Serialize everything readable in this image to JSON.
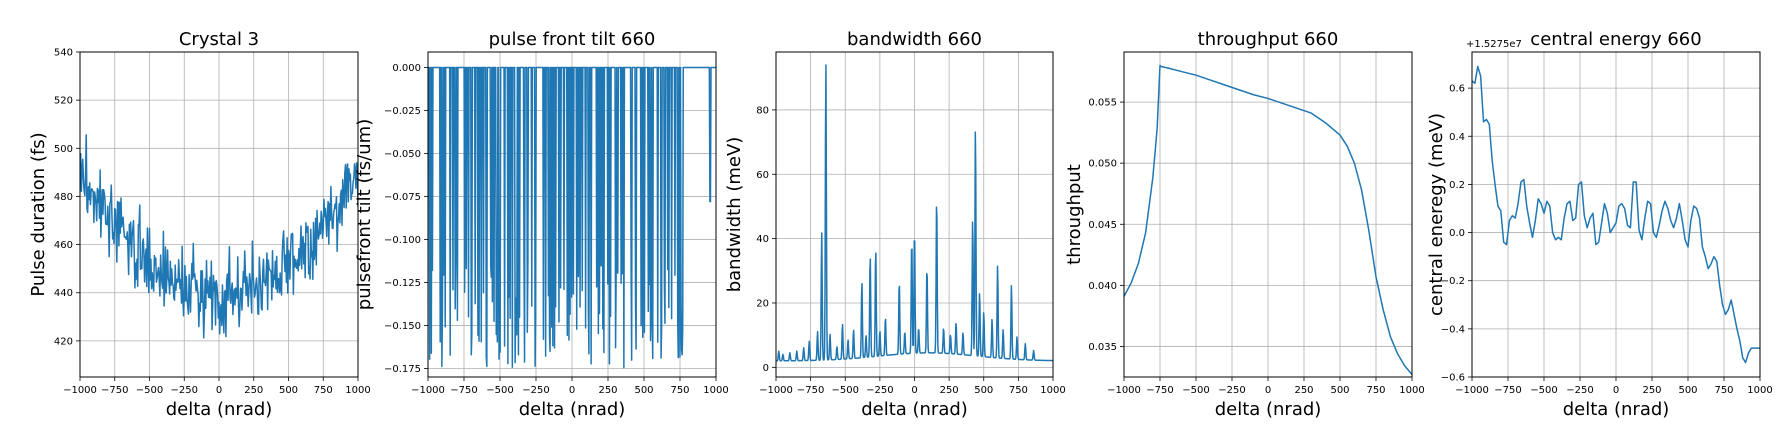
{
  "figure": {
    "line_color": "#1f77b4",
    "grid": true,
    "background": "#ffffff"
  },
  "chart_data": [
    {
      "type": "line",
      "title": "Crystal 3",
      "xlabel": "delta (nrad)",
      "ylabel": "Pulse duration (fs)",
      "xlim": [
        -1000,
        1000
      ],
      "ylim": [
        405,
        540
      ],
      "xticks": [
        -1000,
        -750,
        -500,
        -250,
        0,
        250,
        500,
        750,
        1000
      ],
      "yticks": [
        420,
        440,
        460,
        480,
        500,
        520,
        540
      ],
      "ytick_labels": [
        "420",
        "440",
        "460",
        "480",
        "500",
        "520",
        "540"
      ],
      "generated": {
        "kind": "noisy_parabola",
        "n": 401,
        "x0": 0,
        "a": 5e-05,
        "c": 440,
        "noise": 12,
        "seed": 3
      },
      "series": [
        {
          "x": [],
          "y": []
        }
      ]
    },
    {
      "type": "line",
      "title": "pulse front tilt 660",
      "xlabel": "delta (nrad)",
      "ylabel": "pulsefront tilt (fs/um)",
      "xlim": [
        -1000,
        1000
      ],
      "ylim": [
        -0.18,
        0.009
      ],
      "xticks": [
        -1000,
        -750,
        -500,
        -250,
        0,
        250,
        500,
        750,
        1000
      ],
      "yticks": [
        -0.175,
        -0.15,
        -0.125,
        -0.1,
        -0.075,
        -0.05,
        -0.025,
        0.0
      ],
      "ytick_labels": [
        "−0.175",
        "−0.150",
        "−0.125",
        "−0.100",
        "−0.075",
        "−0.050",
        "−0.025",
        "0.000"
      ],
      "generated": {
        "kind": "spikes_down",
        "baseline": 0,
        "n_spikes": 140,
        "min": -0.175,
        "seed": 7
      },
      "series": [
        {
          "x": [],
          "y": []
        }
      ]
    },
    {
      "type": "line",
      "title": "bandwidth 660",
      "xlabel": "delta (nrad)",
      "ylabel": "bandwidth (meV)",
      "xlim": [
        -1000,
        1000
      ],
      "ylim": [
        -3,
        98
      ],
      "xticks": [
        -1000,
        -750,
        -500,
        -250,
        0,
        250,
        500,
        750,
        1000
      ],
      "yticks": [
        0,
        20,
        40,
        60,
        80
      ],
      "ytick_labels": [
        "0",
        "20",
        "40",
        "60",
        "80"
      ],
      "peaks": [
        [
          -980,
          3
        ],
        [
          -950,
          2
        ],
        [
          -900,
          2.5
        ],
        [
          -850,
          3
        ],
        [
          -800,
          4
        ],
        [
          -760,
          6
        ],
        [
          -700,
          9
        ],
        [
          -670,
          40
        ],
        [
          -640,
          93
        ],
        [
          -610,
          8
        ],
        [
          -560,
          4
        ],
        [
          -520,
          11
        ],
        [
          -480,
          6
        ],
        [
          -440,
          9
        ],
        [
          -380,
          24
        ],
        [
          -350,
          7
        ],
        [
          -320,
          32
        ],
        [
          -280,
          34
        ],
        [
          -250,
          8
        ],
        [
          -210,
          12
        ],
        [
          -110,
          23
        ],
        [
          -70,
          7
        ],
        [
          -20,
          36
        ],
        [
          0,
          39
        ],
        [
          30,
          8
        ],
        [
          90,
          27
        ],
        [
          160,
          49
        ],
        [
          210,
          8
        ],
        [
          260,
          6
        ],
        [
          300,
          10
        ],
        [
          350,
          7
        ],
        [
          420,
          43
        ],
        [
          440,
          72
        ],
        [
          470,
          20
        ],
        [
          500,
          14
        ],
        [
          560,
          12
        ],
        [
          600,
          29
        ],
        [
          640,
          9
        ],
        [
          700,
          23
        ],
        [
          740,
          7
        ],
        [
          800,
          5
        ],
        [
          860,
          3
        ]
      ],
      "series": [
        {
          "x": [],
          "y": []
        }
      ]
    },
    {
      "type": "line",
      "title": "throughput 660",
      "xlabel": "delta (nrad)",
      "ylabel": "throughput",
      "xlim": [
        -1000,
        1000
      ],
      "ylim": [
        0.0325,
        0.0591
      ],
      "xticks": [
        -1000,
        -750,
        -500,
        -250,
        0,
        250,
        500,
        750,
        1000
      ],
      "yticks": [
        0.035,
        0.04,
        0.045,
        0.05,
        0.055
      ],
      "ytick_labels": [
        "0.035",
        "0.040",
        "0.045",
        "0.050",
        "0.055"
      ],
      "series": [
        {
          "x": [
            -1000,
            -950,
            -900,
            -850,
            -800,
            -770,
            -750,
            -740,
            -700,
            -600,
            -500,
            -400,
            -300,
            -200,
            -100,
            0,
            100,
            200,
            300,
            400,
            500,
            550,
            600,
            650,
            700,
            750,
            800,
            850,
            900,
            950,
            1000
          ],
          "y": [
            0.0391,
            0.0402,
            0.0418,
            0.0443,
            0.0488,
            0.0528,
            0.058,
            0.0579,
            0.0578,
            0.0575,
            0.0572,
            0.0568,
            0.0564,
            0.056,
            0.0556,
            0.0553,
            0.0549,
            0.0545,
            0.0541,
            0.0533,
            0.0523,
            0.0514,
            0.05,
            0.0478,
            0.0445,
            0.0407,
            0.038,
            0.0358,
            0.0344,
            0.0334,
            0.0327
          ]
        }
      ]
    },
    {
      "type": "line",
      "title": "central energy 660",
      "xlabel": "delta (nrad)",
      "ylabel": "central eneregy (meV)",
      "offset_text": "+1.5275e7",
      "xlim": [
        -1000,
        1000
      ],
      "ylim": [
        -0.6,
        0.75
      ],
      "xticks": [
        -1000,
        -750,
        -500,
        -250,
        0,
        250,
        500,
        750,
        1000
      ],
      "yticks": [
        -0.6,
        -0.4,
        -0.2,
        0.0,
        0.2,
        0.4,
        0.6
      ],
      "ytick_labels": [
        "−0.6",
        "−0.4",
        "−0.2",
        "0.0",
        "0.2",
        "0.4",
        "0.6"
      ],
      "series": [
        {
          "x": [
            -1000,
            -980,
            -960,
            -940,
            -920,
            -900,
            -880,
            -860,
            -840,
            -820,
            -800,
            -780,
            -760,
            -740,
            -720,
            -700,
            -680,
            -660,
            -640,
            -620,
            -600,
            -580,
            -560,
            -540,
            -520,
            -500,
            -480,
            -460,
            -440,
            -420,
            -400,
            -380,
            -360,
            -340,
            -320,
            -300,
            -280,
            -260,
            -240,
            -220,
            -200,
            -180,
            -160,
            -140,
            -120,
            -100,
            -80,
            -60,
            -40,
            -20,
            0,
            20,
            40,
            60,
            80,
            100,
            120,
            140,
            160,
            180,
            200,
            220,
            240,
            260,
            280,
            300,
            320,
            340,
            360,
            380,
            400,
            420,
            440,
            460,
            480,
            500,
            520,
            540,
            560,
            580,
            600,
            620,
            640,
            660,
            680,
            700,
            720,
            740,
            760,
            780,
            800,
            820,
            840,
            860,
            880,
            900,
            920,
            940,
            960,
            980,
            1000
          ],
          "y": [
            0.63,
            0.62,
            0.69,
            0.65,
            0.46,
            0.47,
            0.45,
            0.3,
            0.2,
            0.11,
            0.09,
            -0.04,
            -0.05,
            0.05,
            0.07,
            0.06,
            0.12,
            0.21,
            0.22,
            0.11,
            0.04,
            -0.02,
            0.05,
            0.14,
            0.12,
            0.08,
            0.13,
            0.11,
            0.0,
            -0.03,
            -0.02,
            -0.03,
            0.06,
            0.12,
            0.13,
            0.05,
            0.06,
            0.2,
            0.21,
            0.07,
            0.02,
            0.06,
            0.08,
            -0.05,
            -0.04,
            0.04,
            0.12,
            0.08,
            0.0,
            0.02,
            0.04,
            0.11,
            0.12,
            0.1,
            0.03,
            0.02,
            0.21,
            0.21,
            0.01,
            -0.03,
            0.06,
            0.13,
            0.12,
            0.0,
            -0.02,
            0.03,
            0.09,
            0.13,
            0.1,
            0.05,
            0.02,
            0.06,
            0.12,
            0.05,
            -0.03,
            -0.06,
            0.05,
            0.11,
            0.1,
            0.06,
            -0.06,
            -0.1,
            -0.15,
            -0.13,
            -0.1,
            -0.12,
            -0.22,
            -0.3,
            -0.34,
            -0.32,
            -0.28,
            -0.34,
            -0.4,
            -0.45,
            -0.52,
            -0.54,
            -0.5,
            -0.48,
            -0.48,
            -0.48,
            -0.48
          ]
        }
      ]
    }
  ]
}
